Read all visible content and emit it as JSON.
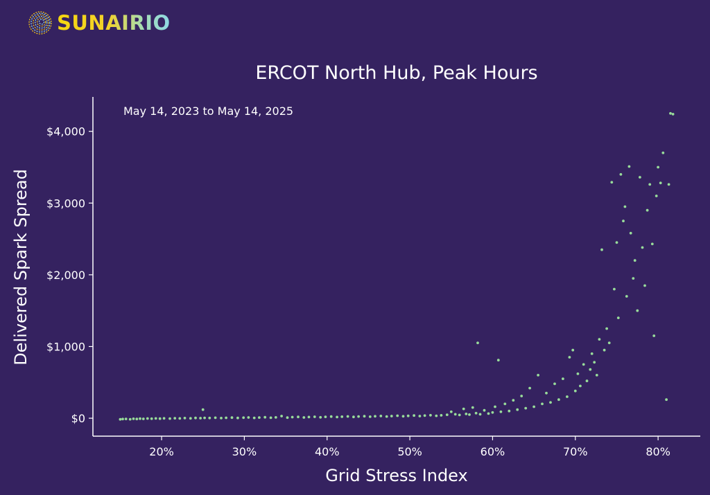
{
  "brand": {
    "name": "SUNAIRIO",
    "logo_icon": "concentric-swirl-logo-icon"
  },
  "colors": {
    "background": "#352260",
    "points": "#98dc9a",
    "text": "#ffffff",
    "logo_gold": "#f0c419",
    "logo_teal": "#8ed7e6"
  },
  "chart_data": {
    "type": "scatter",
    "title": "ERCOT North Hub, Peak Hours",
    "subtitle": "May 14, 2023 to May 14, 2025",
    "xlabel": "Grid Stress Index",
    "ylabel": "Delivered Spark Spread",
    "xlim": [
      0.117,
      0.851
    ],
    "ylim": [
      -250,
      4480
    ],
    "x_ticks": [
      0.2,
      0.3,
      0.4,
      0.5,
      0.6,
      0.7,
      0.8
    ],
    "x_tick_labels": [
      "20%",
      "30%",
      "40%",
      "50%",
      "60%",
      "70%",
      "80%"
    ],
    "y_ticks": [
      0,
      1000,
      2000,
      3000,
      4000
    ],
    "y_tick_labels": [
      "$0",
      "$1,000",
      "$2,000",
      "$3,000",
      "$4,000"
    ],
    "grid": false,
    "legend": false,
    "series_points": [
      [
        0.15,
        -15
      ],
      [
        0.153,
        -12
      ],
      [
        0.157,
        -10
      ],
      [
        0.162,
        -14
      ],
      [
        0.166,
        -8
      ],
      [
        0.17,
        -11
      ],
      [
        0.174,
        -6
      ],
      [
        0.178,
        -9
      ],
      [
        0.183,
        -4
      ],
      [
        0.188,
        -7
      ],
      [
        0.193,
        -3
      ],
      [
        0.198,
        -6
      ],
      [
        0.203,
        -2
      ],
      [
        0.21,
        -5
      ],
      [
        0.216,
        0
      ],
      [
        0.222,
        -3
      ],
      [
        0.228,
        2
      ],
      [
        0.235,
        -2
      ],
      [
        0.241,
        4
      ],
      [
        0.247,
        1
      ],
      [
        0.25,
        120
      ],
      [
        0.252,
        5
      ],
      [
        0.258,
        3
      ],
      [
        0.265,
        7
      ],
      [
        0.272,
        2
      ],
      [
        0.278,
        6
      ],
      [
        0.285,
        9
      ],
      [
        0.292,
        4
      ],
      [
        0.299,
        8
      ],
      [
        0.305,
        11
      ],
      [
        0.312,
        5
      ],
      [
        0.318,
        10
      ],
      [
        0.325,
        14
      ],
      [
        0.332,
        7
      ],
      [
        0.338,
        12
      ],
      [
        0.345,
        30
      ],
      [
        0.352,
        9
      ],
      [
        0.358,
        15
      ],
      [
        0.365,
        18
      ],
      [
        0.372,
        11
      ],
      [
        0.378,
        16
      ],
      [
        0.385,
        20
      ],
      [
        0.392,
        13
      ],
      [
        0.398,
        19
      ],
      [
        0.405,
        23
      ],
      [
        0.412,
        16
      ],
      [
        0.418,
        21
      ],
      [
        0.425,
        25
      ],
      [
        0.432,
        18
      ],
      [
        0.438,
        24
      ],
      [
        0.445,
        28
      ],
      [
        0.452,
        21
      ],
      [
        0.458,
        27
      ],
      [
        0.465,
        31
      ],
      [
        0.472,
        24
      ],
      [
        0.478,
        30
      ],
      [
        0.485,
        35
      ],
      [
        0.492,
        27
      ],
      [
        0.498,
        33
      ],
      [
        0.505,
        38
      ],
      [
        0.512,
        30
      ],
      [
        0.518,
        37
      ],
      [
        0.525,
        42
      ],
      [
        0.532,
        34
      ],
      [
        0.538,
        41
      ],
      [
        0.545,
        48
      ],
      [
        0.55,
        90
      ],
      [
        0.555,
        55
      ],
      [
        0.56,
        45
      ],
      [
        0.565,
        130
      ],
      [
        0.568,
        60
      ],
      [
        0.572,
        50
      ],
      [
        0.576,
        150
      ],
      [
        0.58,
        70
      ],
      [
        0.582,
        1050
      ],
      [
        0.585,
        55
      ],
      [
        0.59,
        110
      ],
      [
        0.595,
        65
      ],
      [
        0.6,
        80
      ],
      [
        0.603,
        160
      ],
      [
        0.607,
        810
      ],
      [
        0.61,
        90
      ],
      [
        0.615,
        200
      ],
      [
        0.62,
        100
      ],
      [
        0.625,
        250
      ],
      [
        0.63,
        120
      ],
      [
        0.635,
        310
      ],
      [
        0.64,
        140
      ],
      [
        0.645,
        420
      ],
      [
        0.65,
        160
      ],
      [
        0.655,
        600
      ],
      [
        0.66,
        200
      ],
      [
        0.665,
        350
      ],
      [
        0.67,
        220
      ],
      [
        0.675,
        480
      ],
      [
        0.68,
        260
      ],
      [
        0.685,
        550
      ],
      [
        0.69,
        300
      ],
      [
        0.693,
        850
      ],
      [
        0.697,
        950
      ],
      [
        0.7,
        380
      ],
      [
        0.703,
        620
      ],
      [
        0.706,
        450
      ],
      [
        0.71,
        750
      ],
      [
        0.714,
        520
      ],
      [
        0.718,
        680
      ],
      [
        0.72,
        900
      ],
      [
        0.723,
        780
      ],
      [
        0.726,
        600
      ],
      [
        0.729,
        1100
      ],
      [
        0.732,
        2350
      ],
      [
        0.735,
        950
      ],
      [
        0.738,
        1250
      ],
      [
        0.741,
        1050
      ],
      [
        0.744,
        3290
      ],
      [
        0.747,
        1800
      ],
      [
        0.75,
        2450
      ],
      [
        0.752,
        1400
      ],
      [
        0.755,
        3400
      ],
      [
        0.758,
        2750
      ],
      [
        0.76,
        2950
      ],
      [
        0.762,
        1700
      ],
      [
        0.765,
        3510
      ],
      [
        0.767,
        2580
      ],
      [
        0.77,
        1950
      ],
      [
        0.772,
        2200
      ],
      [
        0.775,
        1500
      ],
      [
        0.778,
        3360
      ],
      [
        0.781,
        2380
      ],
      [
        0.784,
        1850
      ],
      [
        0.787,
        2900
      ],
      [
        0.79,
        3260
      ],
      [
        0.793,
        2430
      ],
      [
        0.795,
        1150
      ],
      [
        0.798,
        3100
      ],
      [
        0.8,
        3500
      ],
      [
        0.803,
        3280
      ],
      [
        0.806,
        3700
      ],
      [
        0.81,
        260
      ],
      [
        0.813,
        3260
      ],
      [
        0.815,
        4250
      ],
      [
        0.818,
        4240
      ]
    ]
  }
}
